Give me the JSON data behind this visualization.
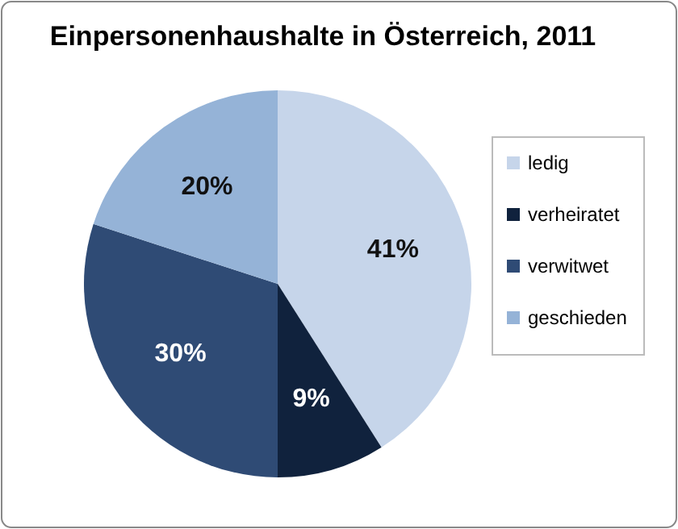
{
  "chart_data": {
    "type": "pie",
    "title": "Einpersonenhaushalte in Österreich, 2011",
    "categories": [
      "ledig",
      "verheiratet",
      "verwitwet",
      "geschieden"
    ],
    "values": [
      41,
      9,
      30,
      20
    ],
    "colors": [
      "#c6d5ea",
      "#10223d",
      "#2f4b75",
      "#95b3d7"
    ],
    "value_labels": [
      "41%",
      "9%",
      "30%",
      "20%"
    ],
    "legend": "right"
  }
}
